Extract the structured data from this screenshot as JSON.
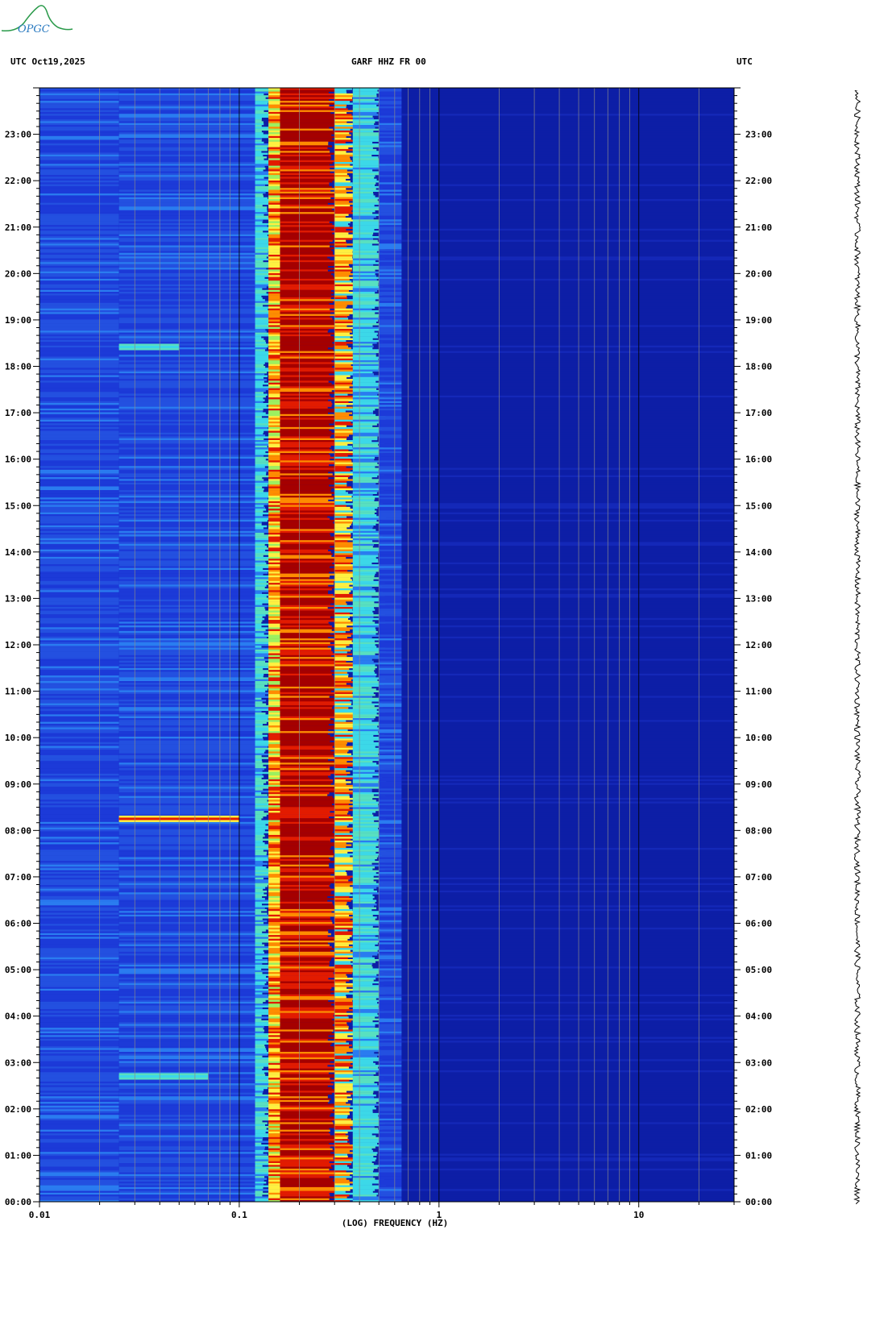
{
  "logo": {
    "text": "OPGC"
  },
  "header": {
    "left": "UTC  Oct19,2025",
    "center": "GARF HHZ FR 00",
    "right": "UTC"
  },
  "chart_data": {
    "type": "heatmap",
    "title": "GARF HHZ FR 00",
    "xlabel": "(LOG) FREQUENCY (HZ)",
    "ylabel": "UTC",
    "x_scale": "log",
    "xlim": [
      0.01,
      30
    ],
    "ylim": [
      "00:00",
      "24:00"
    ],
    "x_ticks": [
      {
        "value": 0.01,
        "label": "0.01"
      },
      {
        "value": 0.1,
        "label": "0.1"
      },
      {
        "value": 1,
        "label": "1"
      },
      {
        "value": 10,
        "label": "10"
      }
    ],
    "y_ticks": [
      "00:00",
      "01:00",
      "02:00",
      "03:00",
      "04:00",
      "05:00",
      "06:00",
      "07:00",
      "08:00",
      "09:00",
      "10:00",
      "11:00",
      "12:00",
      "13:00",
      "14:00",
      "15:00",
      "16:00",
      "17:00",
      "18:00",
      "19:00",
      "20:00",
      "21:00",
      "22:00",
      "23:00"
    ],
    "background_color": "#0d1ea6",
    "colormap": [
      "#0d1ea6",
      "#1c3ad8",
      "#2a7cf0",
      "#3cd8e8",
      "#fff040",
      "#ff8c00",
      "#e21b00",
      "#a50000"
    ],
    "frequency_bands": [
      {
        "fmin": 0.01,
        "fmax": 0.025,
        "level": "blue"
      },
      {
        "fmin": 0.025,
        "fmax": 0.12,
        "level": "blue"
      },
      {
        "fmin": 0.12,
        "fmax": 0.14,
        "level": "cyan"
      },
      {
        "fmin": 0.14,
        "fmax": 0.16,
        "level": "yellow-red"
      },
      {
        "fmin": 0.16,
        "fmax": 0.3,
        "level": "dark-red"
      },
      {
        "fmin": 0.3,
        "fmax": 0.37,
        "level": "orange-yellow"
      },
      {
        "fmin": 0.37,
        "fmax": 0.5,
        "level": "cyan"
      },
      {
        "fmin": 0.5,
        "fmax": 0.65,
        "level": "blue"
      },
      {
        "fmin": 0.65,
        "fmax": 30,
        "level": "dark-blue"
      }
    ],
    "events": [
      {
        "time": "08:15",
        "fmin": 0.025,
        "fmax": 0.1,
        "level": "red"
      },
      {
        "time": "02:42",
        "fmin": 0.025,
        "fmax": 0.07,
        "level": "cyan"
      },
      {
        "time": "18:25",
        "fmin": 0.025,
        "fmax": 0.05,
        "level": "cyan"
      }
    ],
    "grid": true
  }
}
